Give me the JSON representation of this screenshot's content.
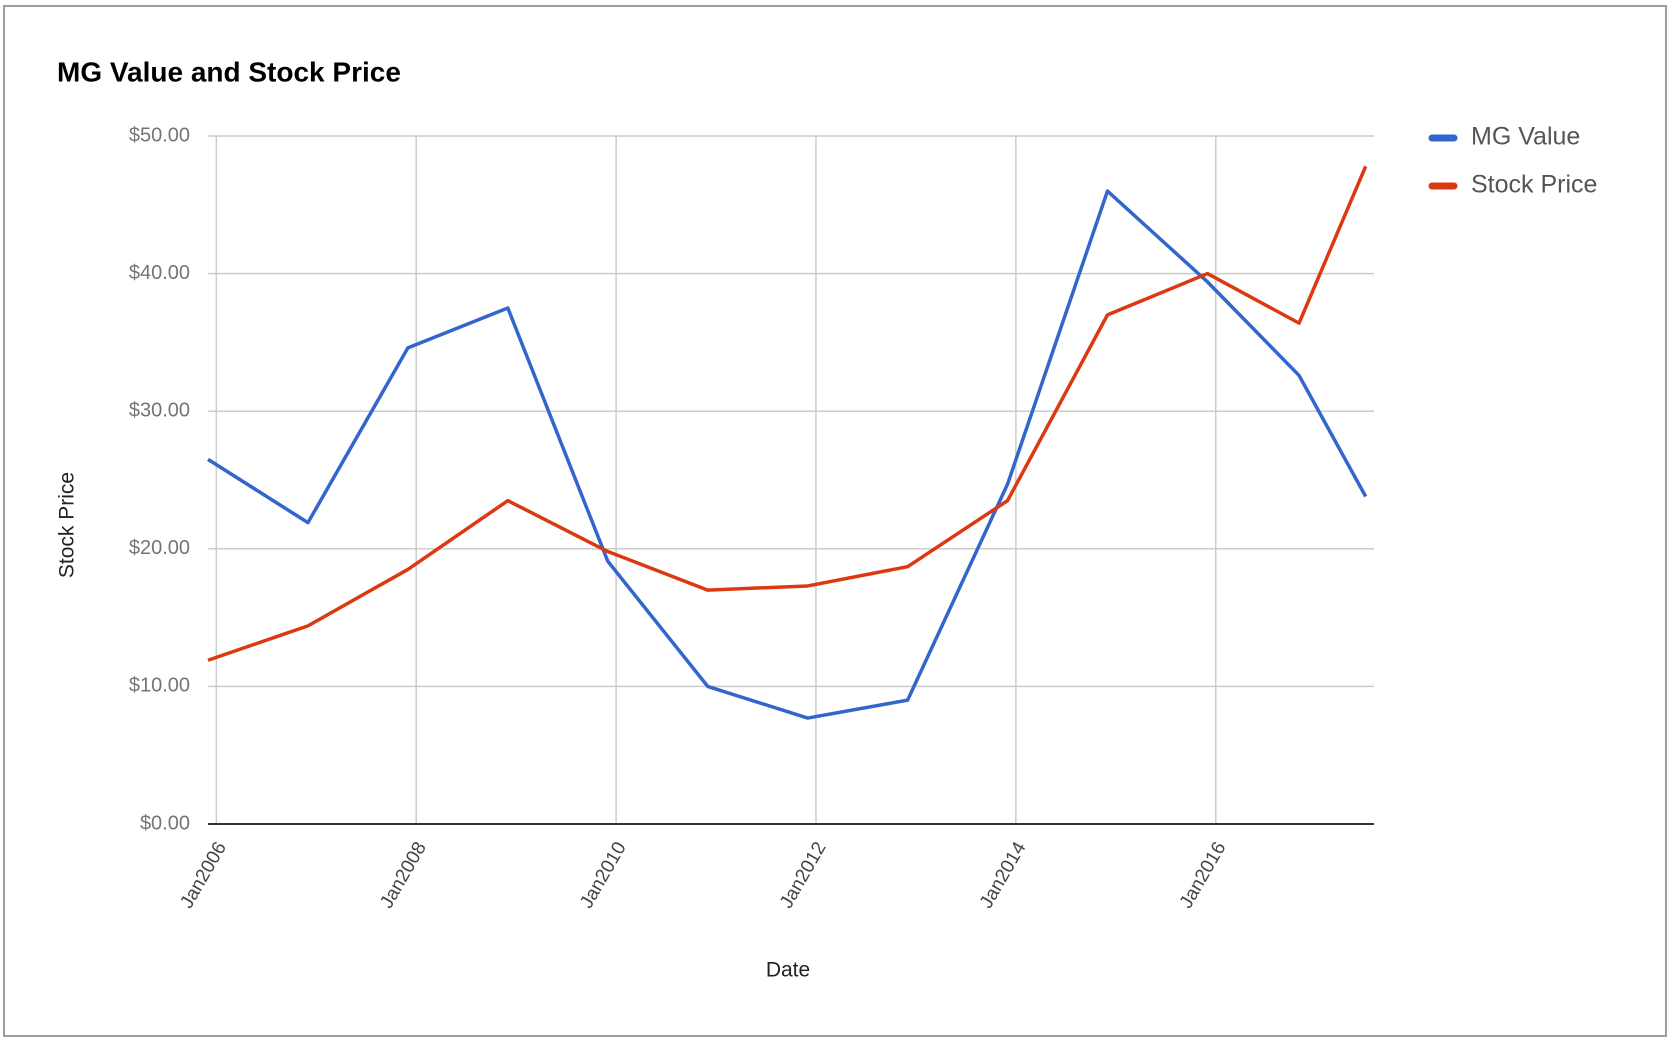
{
  "chart_data": {
    "type": "line",
    "title": "MG Value and Stock Price",
    "x_label": "Date",
    "y_label": "Stock Price",
    "x": [
      "2005-12",
      "2006-12",
      "2007-12",
      "2008-12",
      "2009-12",
      "2010-12",
      "2011-12",
      "2012-12",
      "2013-12",
      "2014-12",
      "2015-12",
      "2016-11",
      "2017-07"
    ],
    "series": [
      {
        "name": "MG Value",
        "color": "#3366cc",
        "values": [
          26.5,
          21.9,
          34.6,
          37.5,
          19.1,
          10.0,
          7.7,
          9.0,
          24.7,
          46.0,
          39.4,
          32.6,
          23.8
        ]
      },
      {
        "name": "Stock Price",
        "color": "#dc3912",
        "values": [
          11.9,
          14.4,
          18.5,
          23.5,
          19.8,
          17.0,
          17.3,
          18.7,
          23.5,
          37.0,
          40.0,
          36.4,
          47.8
        ]
      }
    ],
    "xlim": [
      "2005-12",
      "2017-08"
    ],
    "xticks": [
      {
        "value": "2006-01",
        "label": "Jan2006"
      },
      {
        "value": "2008-01",
        "label": "Jan2008"
      },
      {
        "value": "2010-01",
        "label": "Jan2010"
      },
      {
        "value": "2012-01",
        "label": "Jan2012"
      },
      {
        "value": "2014-01",
        "label": "Jan2014"
      },
      {
        "value": "2016-01",
        "label": "Jan2016"
      }
    ],
    "ylim": [
      0,
      50
    ],
    "yticks": [
      {
        "value": 0,
        "label": "$0.00"
      },
      {
        "value": 10,
        "label": "$10.00"
      },
      {
        "value": 20,
        "label": "$20.00"
      },
      {
        "value": 30,
        "label": "$30.00"
      },
      {
        "value": 40,
        "label": "$40.00"
      },
      {
        "value": 50,
        "label": "$50.00"
      }
    ],
    "grid": true,
    "legend": "right"
  }
}
